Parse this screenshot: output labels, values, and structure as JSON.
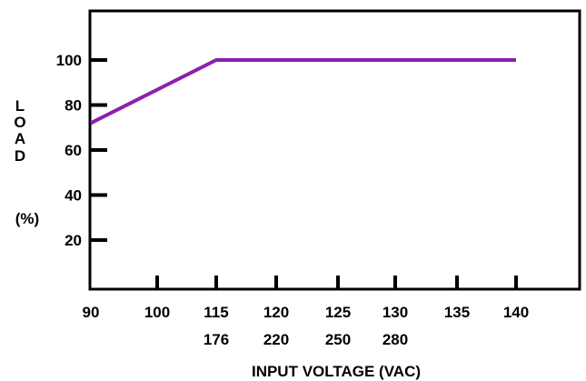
{
  "chart_data": {
    "type": "line",
    "xlabel": "INPUT VOLTAGE (VAC)",
    "ylabel_letters": [
      "L",
      "O",
      "A",
      "D"
    ],
    "ylabel_unit": "(%)",
    "x_ticks": [
      90,
      100,
      115,
      120,
      125,
      130,
      135,
      140
    ],
    "x_tick_labels": [
      "90",
      "100",
      "115",
      "120",
      "125",
      "130",
      "135",
      "140"
    ],
    "x_secondary_labels": [
      {
        "at": 115,
        "label": "176"
      },
      {
        "at": 120,
        "label": "220"
      },
      {
        "at": 125,
        "label": "250"
      },
      {
        "at": 130,
        "label": "280"
      }
    ],
    "y_ticks": [
      20,
      40,
      60,
      80,
      100
    ],
    "y_tick_labels": [
      "20",
      "40",
      "60",
      "80",
      "100"
    ],
    "series": [
      {
        "color": "#8e1fb0",
        "x": [
          90,
          115,
          140
        ],
        "y": [
          72,
          100,
          100
        ]
      }
    ],
    "grid": false,
    "colors": {
      "line": "#8e1fb0",
      "axis": "#000000"
    }
  }
}
